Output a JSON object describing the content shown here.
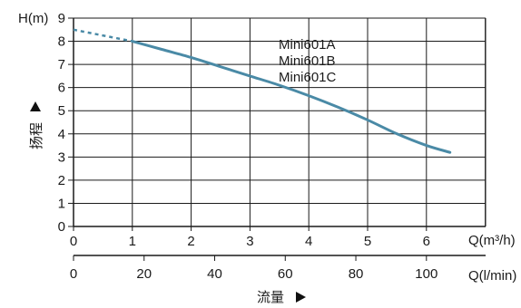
{
  "chart_data": {
    "type": "line",
    "title": "",
    "ylabel": "H(m)",
    "ylabel_vertical": "扬程",
    "xlabel_top": "Q(m³/h)",
    "xlabel_bottom": "Q(l/min)",
    "xlabel_text": "流量",
    "ylim": [
      0,
      9
    ],
    "xlim": [
      0,
      7
    ],
    "grid": true,
    "x_ticks": [
      "0",
      "1",
      "2",
      "3",
      "4",
      "5",
      "6"
    ],
    "y_ticks": [
      "0",
      "1",
      "2",
      "3",
      "4",
      "5",
      "6",
      "7",
      "8",
      "9"
    ],
    "x2_ticks": [
      "0",
      "20",
      "40",
      "60",
      "80",
      "100"
    ],
    "x2_tick_values": [
      0,
      20,
      40,
      60,
      80,
      100
    ],
    "series_labels": [
      "Mini601A",
      "Mini601B",
      "Mini601C"
    ],
    "line_color": "#4a8aa6",
    "series": [
      {
        "dashed_segment": {
          "x": [
            0,
            1
          ],
          "y": [
            8.5,
            8.0
          ]
        },
        "x": [
          1,
          1.5,
          2,
          2.5,
          3,
          3.5,
          4,
          4.5,
          5,
          5.5,
          6,
          6.4
        ],
        "y": [
          8.0,
          7.65,
          7.3,
          6.9,
          6.5,
          6.1,
          5.65,
          5.15,
          4.6,
          4.0,
          3.5,
          3.2
        ]
      }
    ]
  }
}
